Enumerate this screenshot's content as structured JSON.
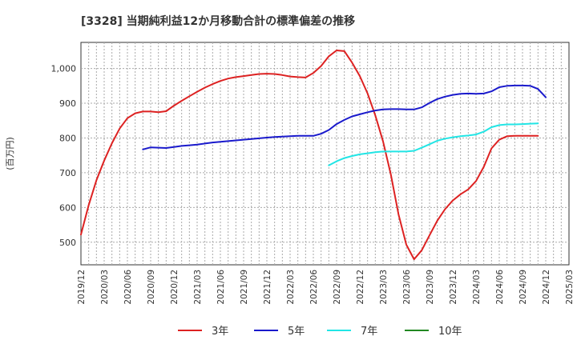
{
  "chart_data": {
    "type": "line",
    "title": "[3328]  当期純利益12か月移動合計の標準偏差の推移",
    "ylabel": "(百万円)",
    "xlabel": "",
    "ylim": [
      435,
      1075
    ],
    "yticks": [
      500,
      600,
      700,
      800,
      900,
      1000
    ],
    "ytick_labels": [
      "500",
      "600",
      "700",
      "800",
      "900",
      "1,000"
    ],
    "x_start": "2019-12",
    "x_end": "2025-03",
    "xtick_labels": [
      "2019/12",
      "2020/03",
      "2020/06",
      "2020/09",
      "2020/12",
      "2021/03",
      "2021/06",
      "2021/09",
      "2021/12",
      "2022/03",
      "2022/06",
      "2022/09",
      "2022/12",
      "2023/03",
      "2023/06",
      "2023/09",
      "2023/12",
      "2024/03",
      "2024/06",
      "2024/09",
      "2024/12",
      "2025/03"
    ],
    "grid": true,
    "legend_position": "bottom",
    "series": [
      {
        "name": "3年",
        "color": "#dd2222",
        "start": "2019-12",
        "values": [
          522,
          607,
          678,
          735,
          785,
          827,
          857,
          871,
          876,
          876,
          874,
          877,
          893,
          907,
          920,
          933,
          945,
          955,
          964,
          971,
          975,
          978,
          981,
          984,
          985,
          984,
          981,
          977,
          975,
          974,
          987,
          1007,
          1035,
          1052,
          1050,
          1017,
          978,
          928,
          865,
          790,
          695,
          580,
          493,
          451,
          477,
          520,
          562,
          595,
          620,
          638,
          652,
          676,
          717,
          770,
          795,
          805,
          806,
          806,
          806,
          806
        ]
      },
      {
        "name": "5年",
        "color": "#1a1acc",
        "start": "2020-08",
        "values": [
          767,
          773,
          772,
          771,
          774,
          777,
          779,
          781,
          784,
          787,
          789,
          791,
          793,
          795,
          797,
          799,
          801,
          803,
          804,
          805,
          806,
          806,
          806,
          812,
          823,
          840,
          852,
          862,
          868,
          874,
          879,
          882,
          883,
          883,
          882,
          882,
          888,
          901,
          912,
          919,
          924,
          927,
          928,
          927,
          928,
          934,
          946,
          950,
          951,
          951,
          950,
          941,
          917
        ]
      },
      {
        "name": "7年",
        "color": "#22e5e5",
        "start": "2022-08",
        "values": [
          721,
          733,
          742,
          748,
          753,
          756,
          759,
          761,
          761,
          761,
          761,
          763,
          772,
          782,
          792,
          798,
          802,
          805,
          807,
          810,
          818,
          831,
          837,
          839,
          839,
          840,
          841,
          842
        ]
      },
      {
        "name": "10年",
        "color": "#228822",
        "start": "2025-03",
        "values": []
      }
    ]
  }
}
